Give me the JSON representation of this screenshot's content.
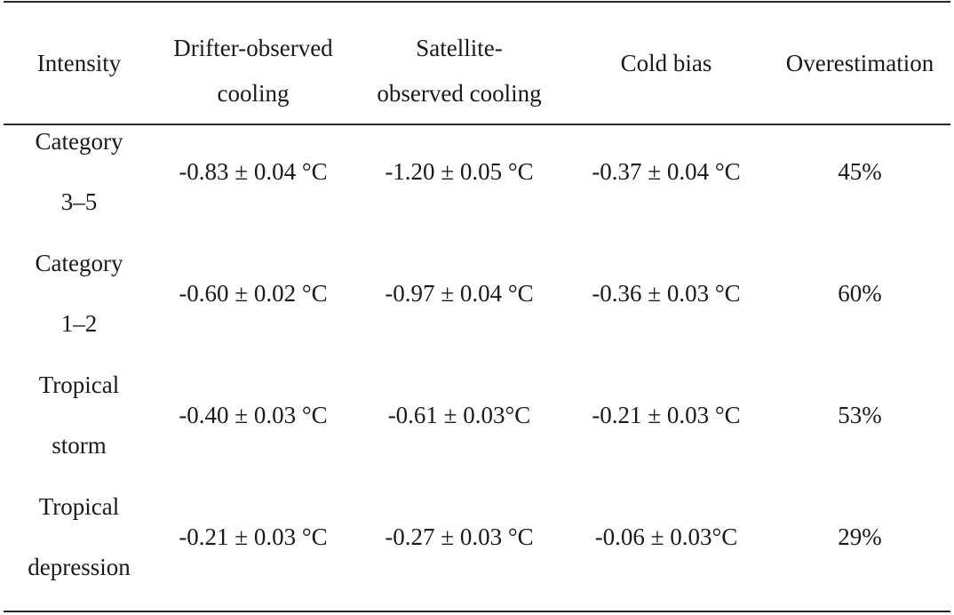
{
  "table": {
    "headers": [
      {
        "line1": "Intensity",
        "line2": ""
      },
      {
        "line1": "Drifter-observed",
        "line2": "cooling"
      },
      {
        "line1": "Satellite-",
        "line2": "observed cooling"
      },
      {
        "line1": "Cold bias",
        "line2": ""
      },
      {
        "line1": "Overestimation",
        "line2": ""
      }
    ],
    "rows": [
      {
        "intensity_line1": "Category",
        "intensity_line2": "3–5",
        "drifter": "-0.83 ± 0.04 °C",
        "satellite": "-1.20 ± 0.05 °C",
        "cold_bias": "-0.37 ± 0.04 °C",
        "overestimation": "45%"
      },
      {
        "intensity_line1": "Category",
        "intensity_line2": "1–2",
        "drifter": "-0.60 ± 0.02 °C",
        "satellite": "-0.97 ± 0.04 °C",
        "cold_bias": "-0.36 ± 0.03 °C",
        "overestimation": "60%"
      },
      {
        "intensity_line1": "Tropical",
        "intensity_line2": "storm",
        "drifter": "-0.40 ± 0.03 °C",
        "satellite": "-0.61 ± 0.03°C",
        "cold_bias": "-0.21 ± 0.03 °C",
        "overestimation": "53%"
      },
      {
        "intensity_line1": "Tropical",
        "intensity_line2": "depression",
        "drifter": "-0.21 ± 0.03 °C",
        "satellite": "-0.27 ± 0.03 °C",
        "cold_bias": "-0.06 ± 0.03°C",
        "overestimation": "29%"
      }
    ]
  }
}
